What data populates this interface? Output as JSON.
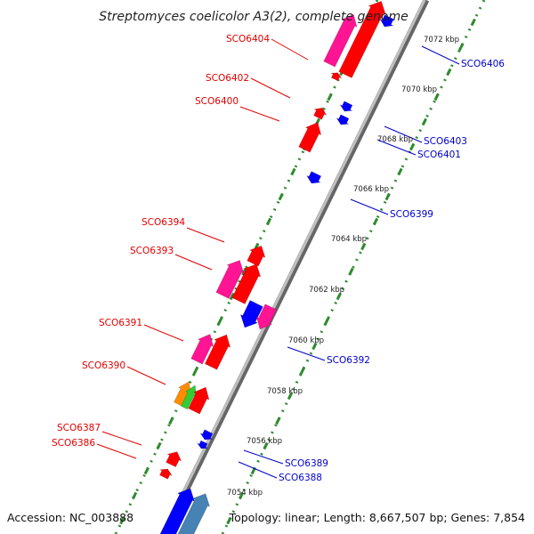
{
  "title": "Streptomyces coelicolor A3(2), complete genome",
  "footer": {
    "accession": "Accession: NC_003888",
    "summary": "Topology: linear; Length: 8,667,507 bp; Genes: 7,854"
  },
  "colors": {
    "forward_label": "#e00000",
    "reverse_label": "#0000cc",
    "red": "#ff0000",
    "pink": "#ff1493",
    "blue": "#0000ff",
    "steel": "#4682b4",
    "orange": "#ff8c00",
    "green": "#32cd32",
    "ruler": "#2e8b2e"
  },
  "kbp_labels": [
    "7072 kbp",
    "7070 kbp",
    "7068 kbp",
    "7066 kbp",
    "7064 kbp",
    "7062 kbp",
    "7060 kbp",
    "7058 kbp",
    "7056 kbp",
    "7054 kbp"
  ],
  "forward_genes": [
    {
      "name": "SCO6404"
    },
    {
      "name": "SCO6402"
    },
    {
      "name": "SCO6400"
    },
    {
      "name": "SCO6394"
    },
    {
      "name": "SCO6393"
    },
    {
      "name": "SCO6391"
    },
    {
      "name": "SCO6390"
    },
    {
      "name": "SCO6387"
    },
    {
      "name": "SCO6386"
    }
  ],
  "reverse_genes": [
    {
      "name": "SCO6406"
    },
    {
      "name": "SCO6403"
    },
    {
      "name": "SCO6401"
    },
    {
      "name": "SCO6399"
    },
    {
      "name": "SCO6392"
    },
    {
      "name": "SCO6389"
    },
    {
      "name": "SCO6388"
    }
  ]
}
